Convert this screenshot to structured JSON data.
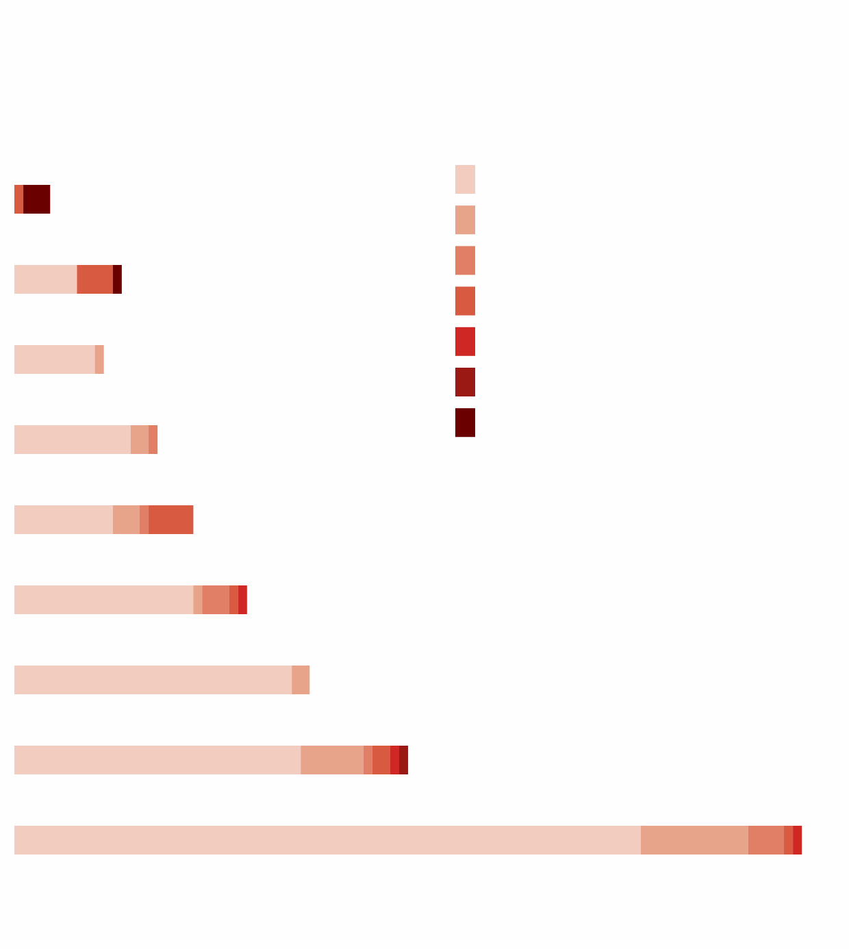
{
  "chart_data": {
    "type": "bar",
    "orientation": "horizontal",
    "stacked": true,
    "title": "",
    "xlabel": "",
    "ylabel": "",
    "xlim": [
      0,
      94
    ],
    "grid": false,
    "legend_position": "top-right",
    "colors": [
      "#f2cdbf",
      "#e8a48b",
      "#e07f65",
      "#d85a40",
      "#cf2824",
      "#9b1914",
      "#6b0000"
    ],
    "series": [
      {
        "values": [
          0,
          7,
          9,
          13,
          11,
          20,
          31,
          32,
          70
        ]
      },
      {
        "values": [
          0,
          0,
          1,
          2,
          3,
          1,
          2,
          7,
          12
        ]
      },
      {
        "values": [
          0,
          0,
          0,
          1,
          1,
          3,
          0,
          1,
          4
        ]
      },
      {
        "values": [
          1,
          4,
          0,
          0,
          5,
          1,
          0,
          2,
          1
        ]
      },
      {
        "values": [
          0,
          0,
          0,
          0,
          0,
          1,
          0,
          1,
          1
        ]
      },
      {
        "values": [
          0,
          0,
          0,
          0,
          0,
          0,
          0,
          1,
          0
        ]
      },
      {
        "values": [
          3,
          1,
          0,
          0,
          0,
          0,
          0,
          0,
          0
        ]
      }
    ]
  }
}
